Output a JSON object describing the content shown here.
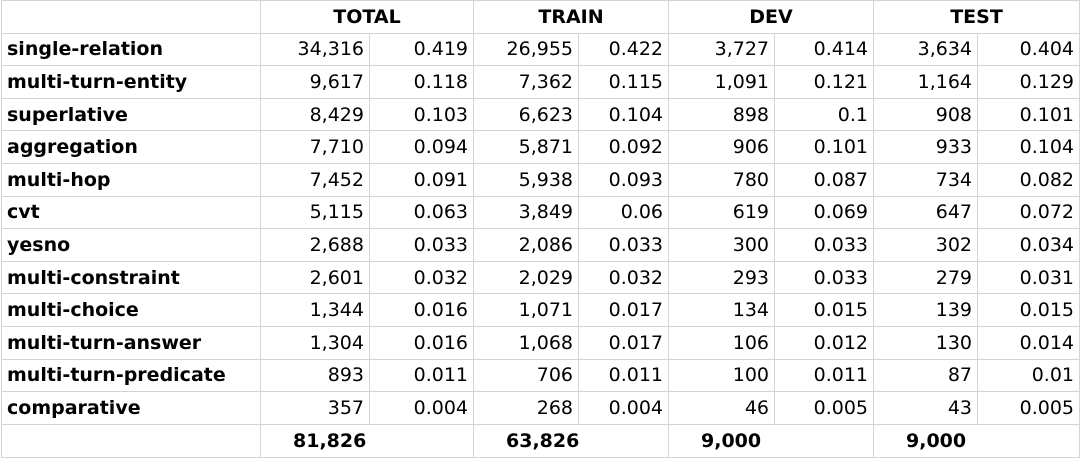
{
  "headers": [
    "",
    "TOTAL",
    "TRAIN",
    "DEV",
    "TEST"
  ],
  "rows": [
    {
      "label": "single-relation",
      "cells": [
        "34,316",
        "0.419",
        "26,955",
        "0.422",
        "3,727",
        "0.414",
        "3,634",
        "0.404"
      ]
    },
    {
      "label": "multi-turn-entity",
      "cells": [
        "9,617",
        "0.118",
        "7,362",
        "0.115",
        "1,091",
        "0.121",
        "1,164",
        "0.129"
      ]
    },
    {
      "label": "superlative",
      "cells": [
        "8,429",
        "0.103",
        "6,623",
        "0.104",
        "898",
        "0.1",
        "908",
        "0.101"
      ]
    },
    {
      "label": "aggregation",
      "cells": [
        "7,710",
        "0.094",
        "5,871",
        "0.092",
        "906",
        "0.101",
        "933",
        "0.104"
      ]
    },
    {
      "label": "multi-hop",
      "cells": [
        "7,452",
        "0.091",
        "5,938",
        "0.093",
        "780",
        "0.087",
        "734",
        "0.082"
      ]
    },
    {
      "label": "cvt",
      "cells": [
        "5,115",
        "0.063",
        "3,849",
        "0.06",
        "619",
        "0.069",
        "647",
        "0.072"
      ]
    },
    {
      "label": "yesno",
      "cells": [
        "2,688",
        "0.033",
        "2,086",
        "0.033",
        "300",
        "0.033",
        "302",
        "0.034"
      ]
    },
    {
      "label": "multi-constraint",
      "cells": [
        "2,601",
        "0.032",
        "2,029",
        "0.032",
        "293",
        "0.033",
        "279",
        "0.031"
      ]
    },
    {
      "label": "multi-choice",
      "cells": [
        "1,344",
        "0.016",
        "1,071",
        "0.017",
        "134",
        "0.015",
        "139",
        "0.015"
      ]
    },
    {
      "label": "multi-turn-answer",
      "cells": [
        "1,304",
        "0.016",
        "1,068",
        "0.017",
        "106",
        "0.012",
        "130",
        "0.014"
      ]
    },
    {
      "label": "multi-turn-predicate",
      "cells": [
        "893",
        "0.011",
        "706",
        "0.011",
        "100",
        "0.011",
        "87",
        "0.01"
      ]
    },
    {
      "label": "comparative",
      "cells": [
        "357",
        "0.004",
        "268",
        "0.004",
        "46",
        "0.005",
        "43",
        "0.005"
      ]
    }
  ],
  "totals": [
    "81,826",
    "63,826",
    "9,000",
    "9,000"
  ]
}
